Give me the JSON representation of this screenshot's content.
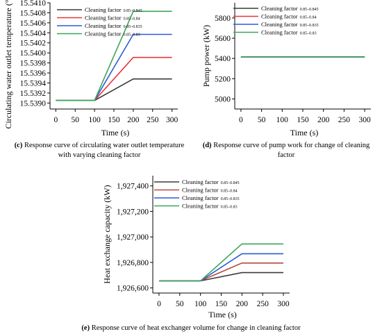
{
  "legend_prefix": "Cleaning factor",
  "legend_suffixes": [
    "0.85–0.845",
    "0.85–0.84",
    "0.85–0.835",
    "0.85–0.83"
  ],
  "colors": [
    "#3a3a3a",
    "#e8343c",
    "#2a5bd7",
    "#3aa65a"
  ],
  "colors_e": [
    "#3a3a3a",
    "#b5493a",
    "#2a5bd7",
    "#3aa65a"
  ],
  "chart_data": [
    {
      "id": "c",
      "type": "line",
      "caption_letter": "(c)",
      "caption_lines": [
        "Response curve of circulating water outlet temperature",
        "with varying cleaning factor"
      ],
      "xlabel": "Time (s)",
      "ylabel": "Circulating water outlet temperature (°C)",
      "xlim": [
        -15,
        315
      ],
      "ylim": [
        15.53888,
        15.541
      ],
      "x_ticks": [
        0,
        50,
        100,
        150,
        200,
        250,
        300
      ],
      "x_tick_labels": [
        "0",
        "50",
        "100",
        "150",
        "200",
        "250",
        "300"
      ],
      "y_ticks": [
        15.539,
        15.5392,
        15.5394,
        15.5396,
        15.5398,
        15.54,
        15.5402,
        15.5404,
        15.5406,
        15.5408,
        15.541
      ],
      "y_tick_labels": [
        "15.5390",
        "15.5392",
        "15.5394",
        "15.5396",
        "15.5398",
        "15.5400",
        "15.5402",
        "15.5404",
        "15.5406",
        "15.5408",
        "15.5410"
      ],
      "x": [
        0,
        100,
        200,
        300
      ],
      "series": [
        {
          "values": [
            15.53905,
            15.53905,
            15.53948,
            15.53948
          ]
        },
        {
          "values": [
            15.53905,
            15.53905,
            15.53991,
            15.53991
          ]
        },
        {
          "values": [
            15.53905,
            15.53905,
            15.54037,
            15.54037
          ]
        },
        {
          "values": [
            15.53905,
            15.53905,
            15.54083,
            15.54083
          ]
        }
      ]
    },
    {
      "id": "d",
      "type": "line",
      "caption_letter": "(d)",
      "caption_lines": [
        "Response curve of pump work for change of cleaning",
        "factor"
      ],
      "xlabel": "Time (s)",
      "ylabel": "Pump power (kW)",
      "xlim": [
        -15,
        315
      ],
      "ylim": [
        4900,
        5950
      ],
      "x_ticks": [
        0,
        50,
        100,
        150,
        200,
        250,
        300
      ],
      "x_tick_labels": [
        "0",
        "50",
        "100",
        "150",
        "200",
        "250",
        "300"
      ],
      "y_ticks": [
        5000,
        5200,
        5400,
        5600,
        5800
      ],
      "y_tick_labels": [
        "5000",
        "5200",
        "5400",
        "5600",
        "5800"
      ],
      "x": [
        0,
        100,
        200,
        300
      ],
      "series": [
        {
          "values": [
            5415,
            5415,
            5415,
            5415
          ]
        },
        {
          "values": [
            5415,
            5415,
            5415,
            5415
          ]
        },
        {
          "values": [
            5415,
            5415,
            5415,
            5415
          ]
        },
        {
          "values": [
            5415,
            5415,
            5415,
            5415
          ]
        }
      ]
    },
    {
      "id": "e",
      "type": "line",
      "caption_letter": "(e)",
      "caption_lines": [
        "Response curve of heat exchanger volume for change in cleaning factor"
      ],
      "xlabel": "Time (s)",
      "ylabel": "Heat exchange capacity (kW)",
      "xlim": [
        -15,
        315
      ],
      "ylim": [
        1926560,
        1927480
      ],
      "x_ticks": [
        0,
        50,
        100,
        150,
        200,
        250,
        300
      ],
      "x_tick_labels": [
        "0",
        "50",
        "100",
        "150",
        "200",
        "250",
        "300"
      ],
      "y_ticks": [
        1926600,
        1926800,
        1927000,
        1927200,
        1927400
      ],
      "y_tick_labels": [
        "1,926,600",
        "1,926,800",
        "1,927,000",
        "1,927,200",
        "1,927,400"
      ],
      "x": [
        0,
        100,
        200,
        300
      ],
      "series": [
        {
          "values": [
            1926655,
            1926655,
            1926720,
            1926720
          ]
        },
        {
          "values": [
            1926655,
            1926655,
            1926795,
            1926795
          ]
        },
        {
          "values": [
            1926655,
            1926655,
            1926868,
            1926868
          ]
        },
        {
          "values": [
            1926655,
            1926655,
            1926945,
            1926945
          ]
        }
      ]
    }
  ]
}
